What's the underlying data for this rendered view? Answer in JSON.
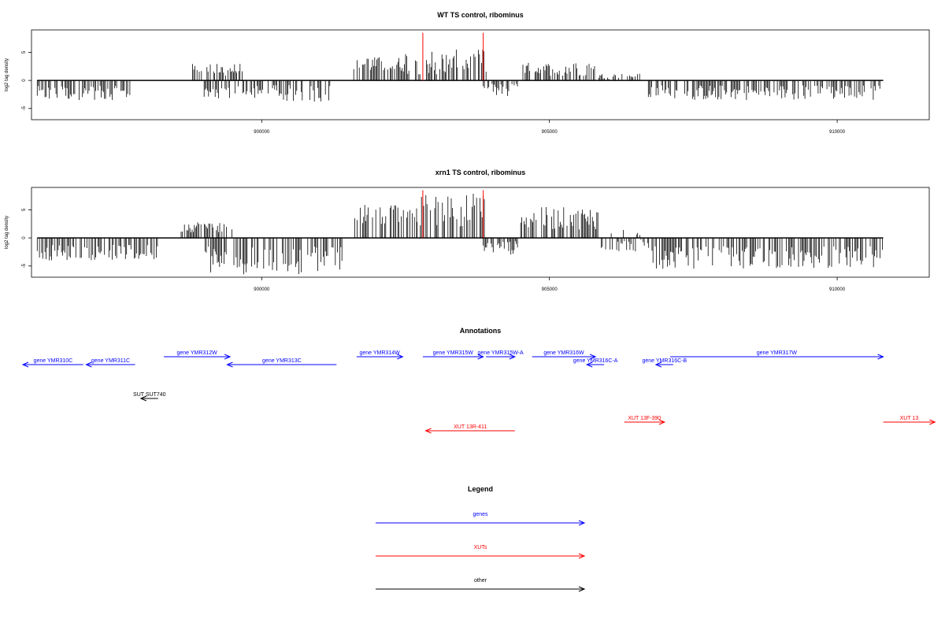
{
  "chart_data": [
    {
      "type": "bar",
      "title": "WT TS control, ribominus",
      "ylabel": "log2 tag density",
      "xlabel": "",
      "xlim": [
        896000,
        911600
      ],
      "ylim": [
        -7,
        9
      ],
      "x_ticks": [
        900000,
        905000,
        910000
      ],
      "x_tick_labels": [
        "900000",
        "905000",
        "910000"
      ],
      "y_ticks": [
        -5,
        0,
        5
      ],
      "y_tick_labels": [
        "-5",
        "0",
        "5"
      ],
      "grid": false,
      "highlight_lines": {
        "color": "#ff0000",
        "x": [
          902800,
          903850
        ],
        "top": 8.5
      },
      "profile": [
        {
          "from": 896100,
          "to": 897800,
          "min": -3.5,
          "max": -1.0
        },
        {
          "from": 898800,
          "to": 899700,
          "min": 0.8,
          "max": 3.0
        },
        {
          "from": 899000,
          "to": 901200,
          "min": -3.8,
          "max": -0.8
        },
        {
          "from": 901600,
          "to": 902500,
          "min": 1.5,
          "max": 4.2
        },
        {
          "from": 902500,
          "to": 903900,
          "min": 1.0,
          "max": 5.5
        },
        {
          "from": 903850,
          "to": 904500,
          "min": -3.0,
          "max": -0.5
        },
        {
          "from": 904500,
          "to": 905800,
          "min": 0.8,
          "max": 3.2
        },
        {
          "from": 905800,
          "to": 906600,
          "min": 0.3,
          "max": 1.2
        },
        {
          "from": 906700,
          "to": 910800,
          "min": -3.5,
          "max": -0.8
        }
      ]
    },
    {
      "type": "bar",
      "title": "xrn1 TS control, ribominus",
      "ylabel": "log2 tag density",
      "xlabel": "",
      "xlim": [
        896000,
        911600
      ],
      "ylim": [
        -7,
        9
      ],
      "x_ticks": [
        900000,
        905000,
        910000
      ],
      "x_tick_labels": [
        "900000",
        "905000",
        "910000"
      ],
      "y_ticks": [
        -5,
        0,
        5
      ],
      "y_tick_labels": [
        "-5",
        "0",
        "5"
      ],
      "grid": false,
      "highlight_lines": {
        "color": "#ff0000",
        "x": [
          902800,
          903850
        ],
        "top": 8.5
      },
      "profile": [
        {
          "from": 896100,
          "to": 898200,
          "min": -4.0,
          "max": -1.2
        },
        {
          "from": 898600,
          "to": 899500,
          "min": 1.0,
          "max": 3.0
        },
        {
          "from": 899000,
          "to": 901400,
          "min": -6.5,
          "max": -1.5
        },
        {
          "from": 901600,
          "to": 902700,
          "min": 2.5,
          "max": 6.0
        },
        {
          "from": 902700,
          "to": 903900,
          "min": 2.0,
          "max": 8.0
        },
        {
          "from": 903850,
          "to": 904500,
          "min": -3.0,
          "max": -0.5
        },
        {
          "from": 904500,
          "to": 905900,
          "min": 1.5,
          "max": 5.5
        },
        {
          "from": 905900,
          "to": 906800,
          "min": -2.5,
          "max": 1.5
        },
        {
          "from": 906800,
          "to": 910800,
          "min": -5.5,
          "max": -1.5
        }
      ]
    }
  ],
  "annotations": {
    "title": "Annotations",
    "items": [
      {
        "label": "gene YMR310C",
        "kind": "gene",
        "color": "#0000ff",
        "from": 896900,
        "to": 895850,
        "row": 1
      },
      {
        "label": "gene YMR311C",
        "kind": "gene",
        "color": "#0000ff",
        "from": 897800,
        "to": 896950,
        "row": 1
      },
      {
        "label": "gene YMR312W",
        "kind": "gene",
        "color": "#0000ff",
        "from": 898300,
        "to": 899450,
        "row": 0
      },
      {
        "label": "gene YMR313C",
        "kind": "gene",
        "color": "#0000ff",
        "from": 901300,
        "to": 899400,
        "row": 1
      },
      {
        "label": "gene YMR314W",
        "kind": "gene",
        "color": "#0000ff",
        "from": 901650,
        "to": 902450,
        "row": 0
      },
      {
        "label": "gene YMR315W",
        "kind": "gene",
        "color": "#0000ff",
        "from": 902800,
        "to": 903850,
        "row": 0
      },
      {
        "label": "gene YMR315W-A",
        "kind": "gene",
        "color": "#0000ff",
        "from": 903900,
        "to": 904400,
        "row": 0
      },
      {
        "label": "gene YMR316W",
        "kind": "gene",
        "color": "#0000ff",
        "from": 904700,
        "to": 905800,
        "row": 0
      },
      {
        "label": "gene YMR316C-A",
        "kind": "gene",
        "color": "#0000ff",
        "from": 905950,
        "to": 905650,
        "row": 1
      },
      {
        "label": "gene YMR316C-B",
        "kind": "gene",
        "color": "#0000ff",
        "from": 907150,
        "to": 906850,
        "row": 1
      },
      {
        "label": "gene YMR317W",
        "kind": "gene",
        "color": "#0000ff",
        "from": 907100,
        "to": 910800,
        "row": 0
      },
      {
        "label": "SUT SUT740",
        "kind": "other",
        "color": "#000000",
        "from": 898200,
        "to": 897900,
        "row": 2
      },
      {
        "label": "XUT 13R-411",
        "kind": "xut",
        "color": "#ff0000",
        "from": 904400,
        "to": 902850,
        "row": 3
      },
      {
        "label": "XUT 13F-390",
        "kind": "xut",
        "color": "#ff0000",
        "from": 906300,
        "to": 907000,
        "row": 4
      },
      {
        "label": "XUT 13",
        "kind": "xut",
        "color": "#ff0000",
        "from": 910800,
        "to": 911700,
        "row": 4
      }
    ]
  },
  "legend": {
    "title": "Legend",
    "entries": [
      {
        "label": "genes",
        "color": "#0000ff"
      },
      {
        "label": "XUTs",
        "color": "#ff0000"
      },
      {
        "label": "other",
        "color": "#000000"
      }
    ]
  }
}
